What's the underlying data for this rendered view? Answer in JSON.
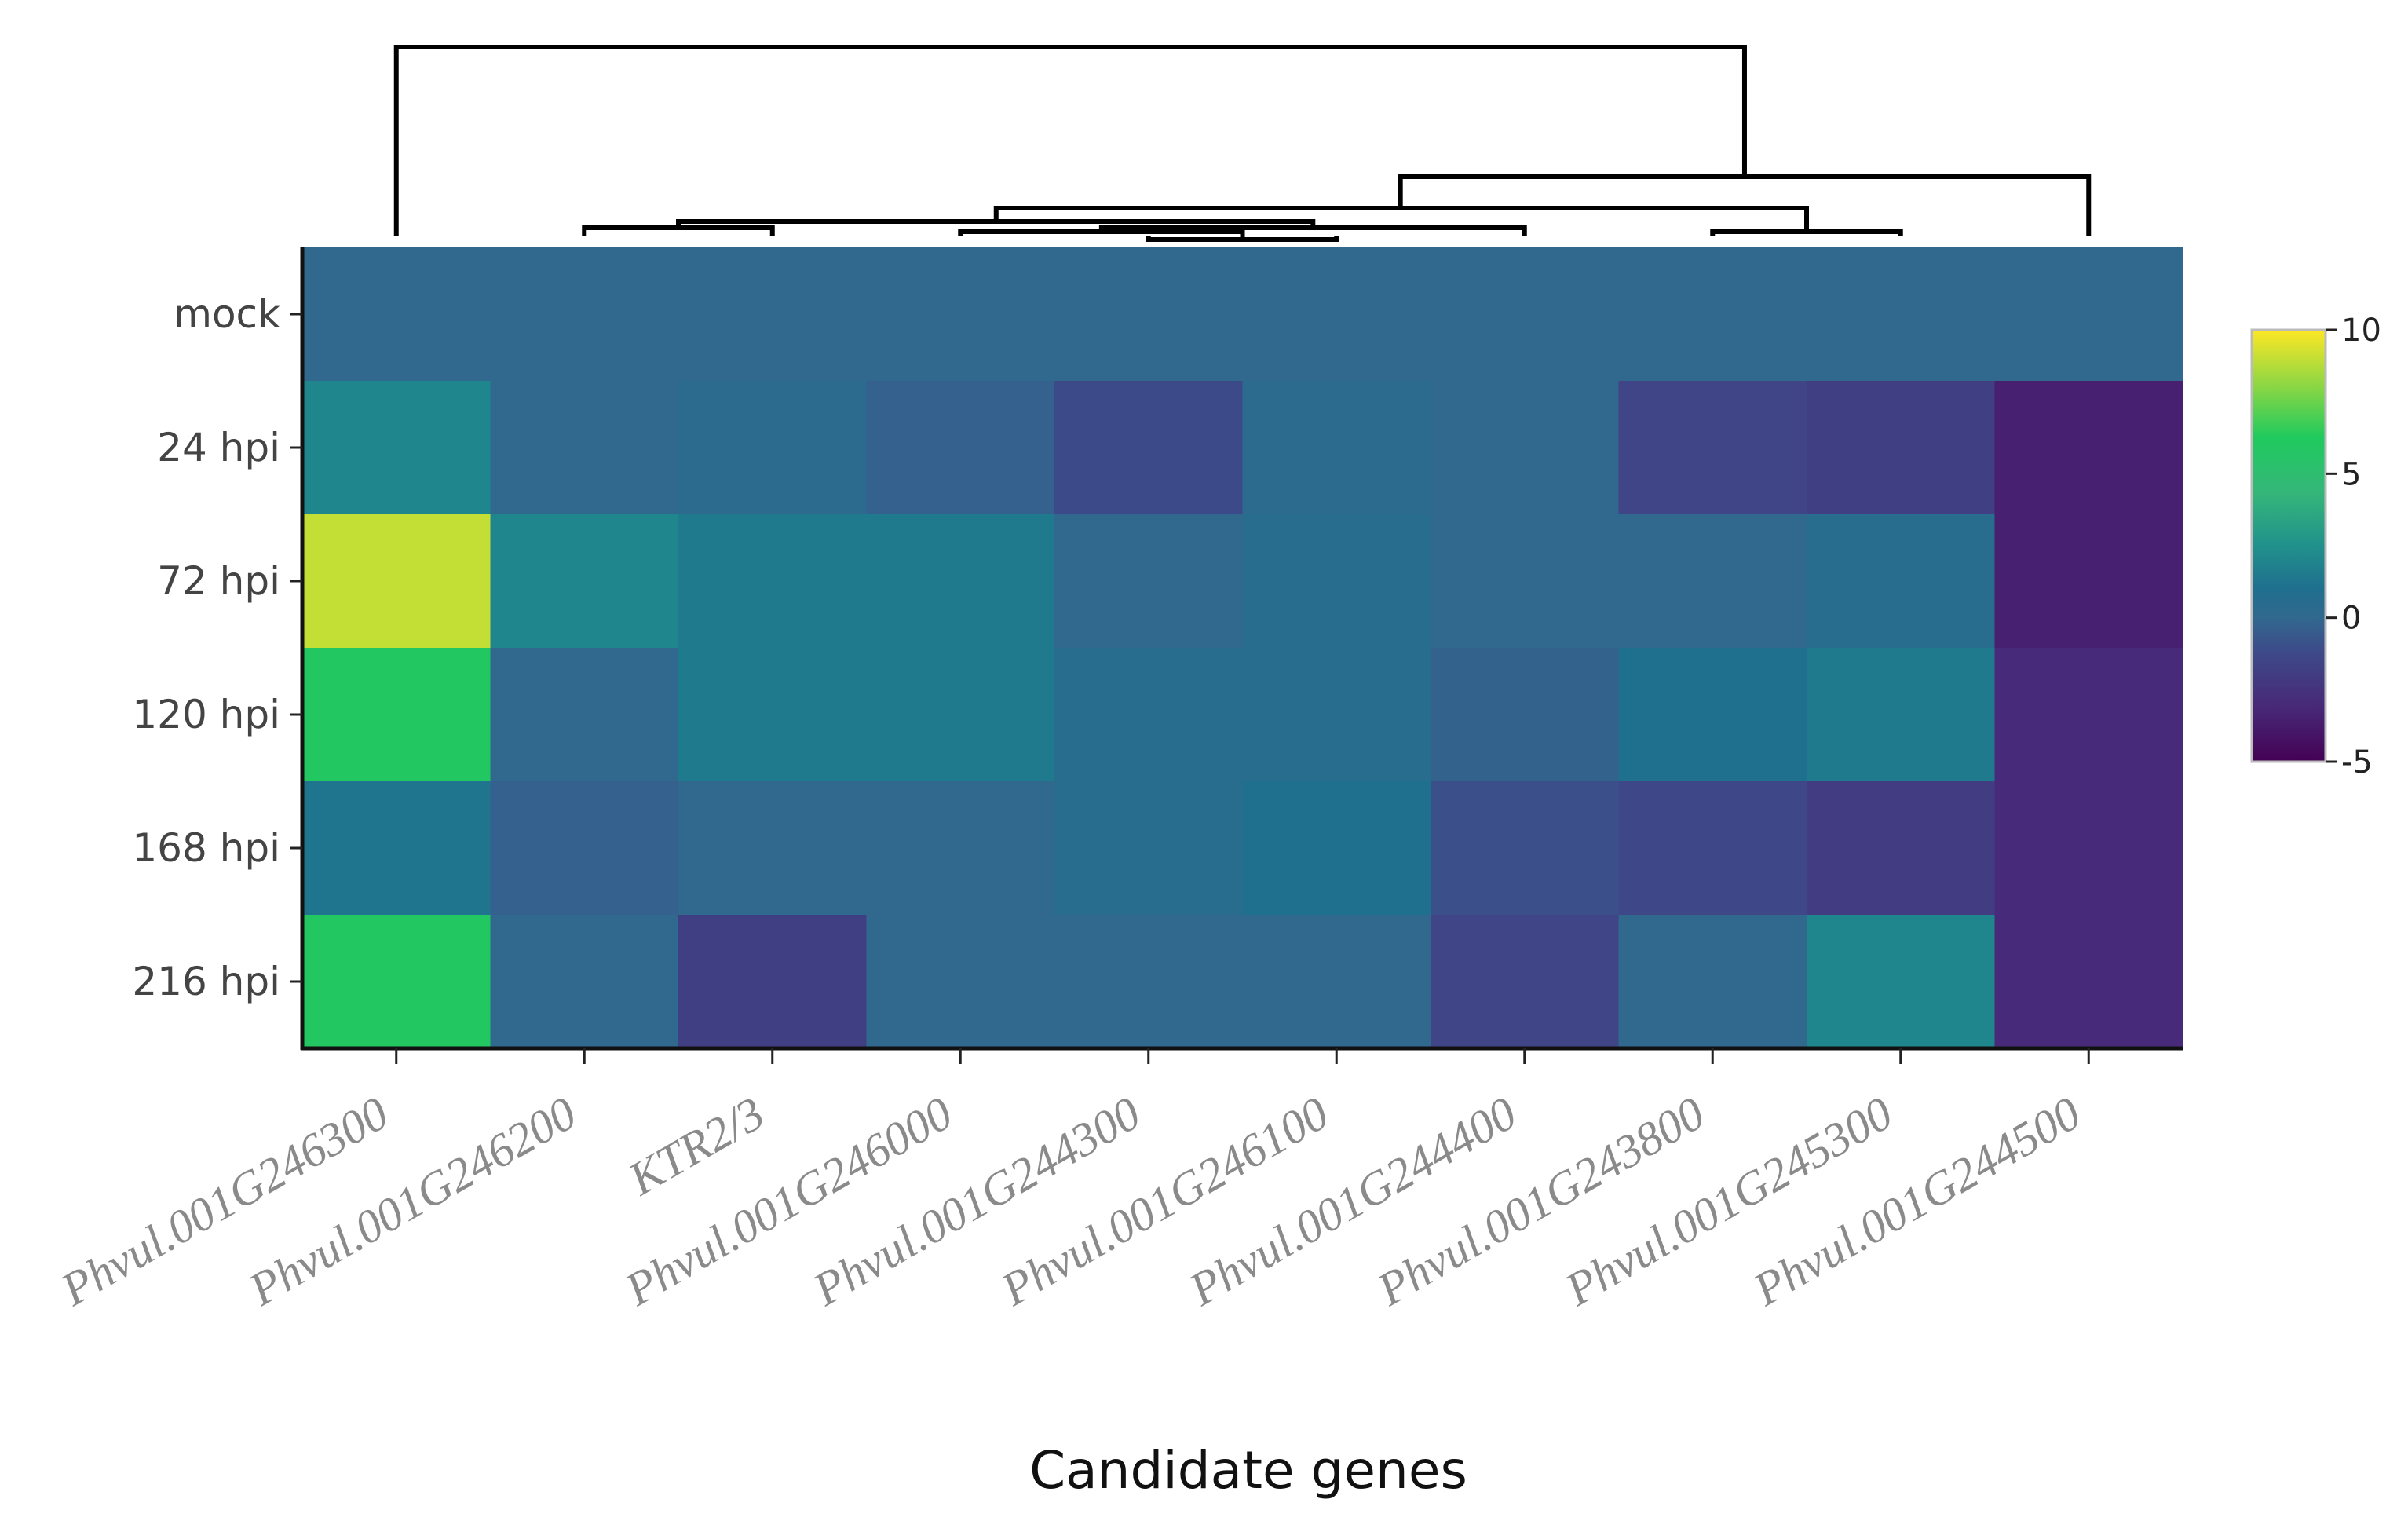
{
  "chart_data": {
    "type": "heatmap",
    "title": "",
    "xlabel": "Candidate genes",
    "ylabel": "",
    "rows": [
      "mock",
      "24 hpi",
      "72 hpi",
      "120 hpi",
      "168 hpi",
      "216 hpi"
    ],
    "columns": [
      "Phvul.001G246300",
      "Phvul.001G246200",
      "KTR2/3",
      "Phvul.001G246000",
      "Phvul.001G244300",
      "Phvul.001G246100",
      "Phvul.001G244400",
      "Phvul.001G243800",
      "Phvul.001G245300",
      "Phvul.001G244500"
    ],
    "values": [
      [
        0,
        0,
        0,
        0,
        0,
        0,
        0,
        0,
        0,
        0
      ],
      [
        2,
        0,
        0.3,
        -0.3,
        -1.2,
        0.3,
        0,
        -1.5,
        -1.8,
        -3.5
      ],
      [
        9,
        2,
        1.5,
        1.5,
        0,
        0.5,
        0,
        0,
        0.5,
        -3.5
      ],
      [
        6,
        0,
        1.5,
        1.5,
        0.5,
        0.5,
        -0.2,
        1,
        1.5,
        -3
      ],
      [
        1.2,
        -0.3,
        0,
        0,
        0.5,
        1,
        -1,
        -1.3,
        -2,
        -3
      ],
      [
        6,
        0,
        -1.8,
        0,
        0,
        0,
        -1.5,
        0,
        2,
        -3
      ]
    ],
    "colorbar": {
      "min": -5,
      "max": 10,
      "ticks": [
        10,
        5,
        0,
        -5
      ],
      "tick_labels": [
        "10",
        "5",
        "0",
        "-5"
      ],
      "colorscale": "viridis"
    },
    "dendrogram_order": [
      0,
      1,
      2,
      3,
      4,
      5,
      6,
      7,
      8,
      9
    ]
  }
}
